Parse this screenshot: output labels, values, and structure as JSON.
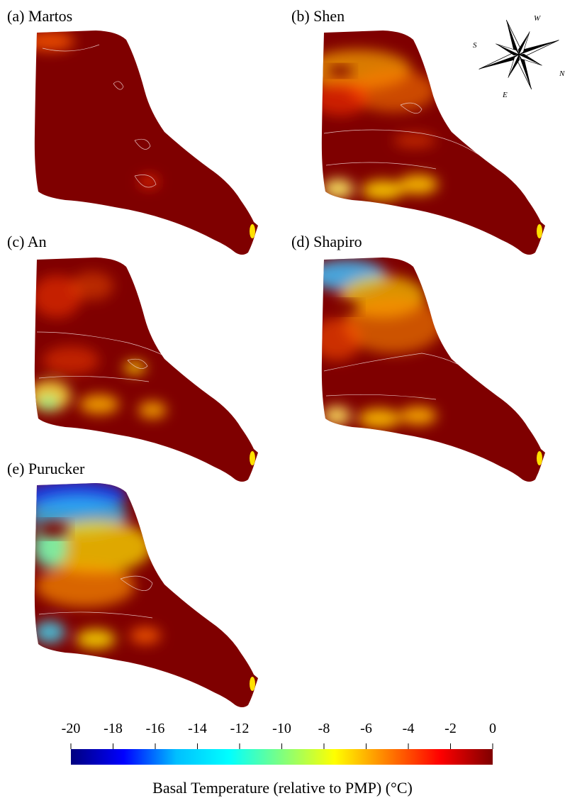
{
  "panels": [
    {
      "id": "a",
      "label": "(a) Martos",
      "profile": "martos"
    },
    {
      "id": "b",
      "label": "(b) Shen",
      "profile": "shen"
    },
    {
      "id": "c",
      "label": "(c) An",
      "profile": "an"
    },
    {
      "id": "d",
      "label": "(d) Shapiro",
      "profile": "shapiro"
    },
    {
      "id": "e",
      "label": "(e) Purucker",
      "profile": "purucker"
    }
  ],
  "compass": {
    "letters": [
      "W",
      "S",
      "N",
      "E"
    ]
  },
  "colorbar": {
    "title": "Basal Temperature (relative to PMP) (°C)",
    "min": -20,
    "max": 0,
    "ticks": [
      "-20",
      "-18",
      "-16",
      "-14",
      "-12",
      "-10",
      "-8",
      "-6",
      "-4",
      "-2",
      "0"
    ],
    "colors": [
      "#00007f",
      "#0000ff",
      "#00bfff",
      "#00ffff",
      "#7fff7f",
      "#ffff00",
      "#ff7f00",
      "#ff0000",
      "#7f0000"
    ]
  }
}
